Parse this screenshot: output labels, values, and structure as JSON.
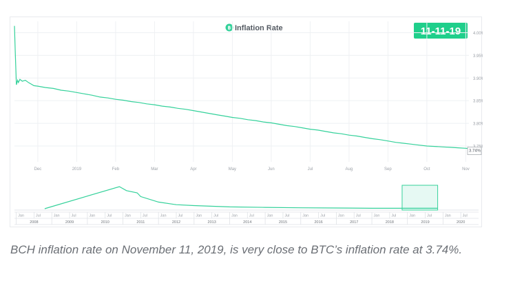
{
  "chart_data": {
    "type": "line",
    "title": "Inflation Rate",
    "date_badge": "11-11-19",
    "colors": {
      "line": "#33d19a",
      "badge": "#1fcf8b",
      "grid": "#eef0f3",
      "text": "#9a9fa6"
    },
    "main": {
      "y_range": [
        3.715,
        4.025
      ],
      "y_ticks": [
        "4.00%",
        "3.95%",
        "3.90%",
        "3.85%",
        "3.80%",
        "3.75%"
      ],
      "y_tick_values": [
        4.0,
        3.95,
        3.9,
        3.85,
        3.8,
        3.75
      ],
      "x_ticks": [
        "Dec",
        "2019",
        "Feb",
        "Mar",
        "Apr",
        "May",
        "Jun",
        "Jul",
        "Aug",
        "Sep",
        "Oct",
        "Nov"
      ],
      "x_tick_months": [
        0.6,
        1.6,
        2.6,
        3.6,
        4.6,
        5.6,
        6.6,
        7.6,
        8.6,
        9.6,
        10.6,
        11.6
      ],
      "x_range_months": [
        0,
        12.0
      ],
      "last_value_label": "3.74%",
      "x": [
        0.0,
        0.02,
        0.05,
        0.08,
        0.1,
        0.14,
        0.2,
        0.28,
        0.36,
        0.5,
        0.6,
        0.8,
        1.0,
        1.2,
        1.4,
        1.6,
        1.8,
        2.0,
        2.2,
        2.4,
        2.6,
        2.8,
        3.0,
        3.2,
        3.4,
        3.6,
        3.8,
        4.0,
        4.2,
        4.4,
        4.6,
        4.8,
        5.0,
        5.2,
        5.4,
        5.6,
        5.8,
        6.0,
        6.2,
        6.4,
        6.6,
        6.8,
        7.0,
        7.2,
        7.4,
        7.6,
        7.8,
        8.0,
        8.2,
        8.4,
        8.6,
        8.8,
        9.0,
        9.2,
        9.4,
        9.6,
        9.8,
        10.0,
        10.2,
        10.4,
        10.6,
        10.8,
        11.0,
        11.2,
        11.4,
        11.6,
        11.8,
        12.0
      ],
      "y": [
        4.015,
        3.96,
        3.885,
        3.895,
        3.89,
        3.897,
        3.893,
        3.895,
        3.89,
        3.883,
        3.882,
        3.879,
        3.877,
        3.873,
        3.871,
        3.868,
        3.865,
        3.862,
        3.858,
        3.856,
        3.853,
        3.851,
        3.848,
        3.846,
        3.843,
        3.841,
        3.838,
        3.836,
        3.833,
        3.831,
        3.828,
        3.825,
        3.822,
        3.819,
        3.816,
        3.813,
        3.811,
        3.808,
        3.806,
        3.803,
        3.801,
        3.798,
        3.795,
        3.793,
        3.79,
        3.787,
        3.785,
        3.782,
        3.779,
        3.777,
        3.774,
        3.772,
        3.769,
        3.766,
        3.764,
        3.761,
        3.758,
        3.756,
        3.754,
        3.752,
        3.75,
        3.749,
        3.748,
        3.747,
        3.746,
        3.745,
        3.743,
        3.74
      ]
    },
    "navigator": {
      "x_range_years": [
        2007.95,
        2021.0
      ],
      "y_range": [
        0,
        1
      ],
      "line_x": [
        2008.8,
        2010.9,
        2011.1,
        2011.4,
        2011.5,
        2012.0,
        2012.5,
        2013.0,
        2014.0,
        2015.0,
        2016.0,
        2017.0,
        2018.0,
        2019.5,
        2019.85
      ],
      "line_y": [
        0.0,
        1.0,
        0.82,
        0.72,
        0.55,
        0.3,
        0.18,
        0.14,
        0.08,
        0.06,
        0.04,
        0.03,
        0.02,
        0.02,
        0.02
      ],
      "selection_years": [
        2018.85,
        2019.85
      ],
      "year_labels": [
        "2008",
        "2009",
        "2010",
        "2011",
        "2012",
        "2013",
        "2014",
        "2015",
        "2016",
        "2017",
        "2018",
        "2019",
        "2020"
      ],
      "half_labels": [
        "Jan",
        "Jul"
      ]
    }
  },
  "caption": "BCH inflation rate on November 11, 2019, is very close to BTC’s inflation rate at 3.74%."
}
